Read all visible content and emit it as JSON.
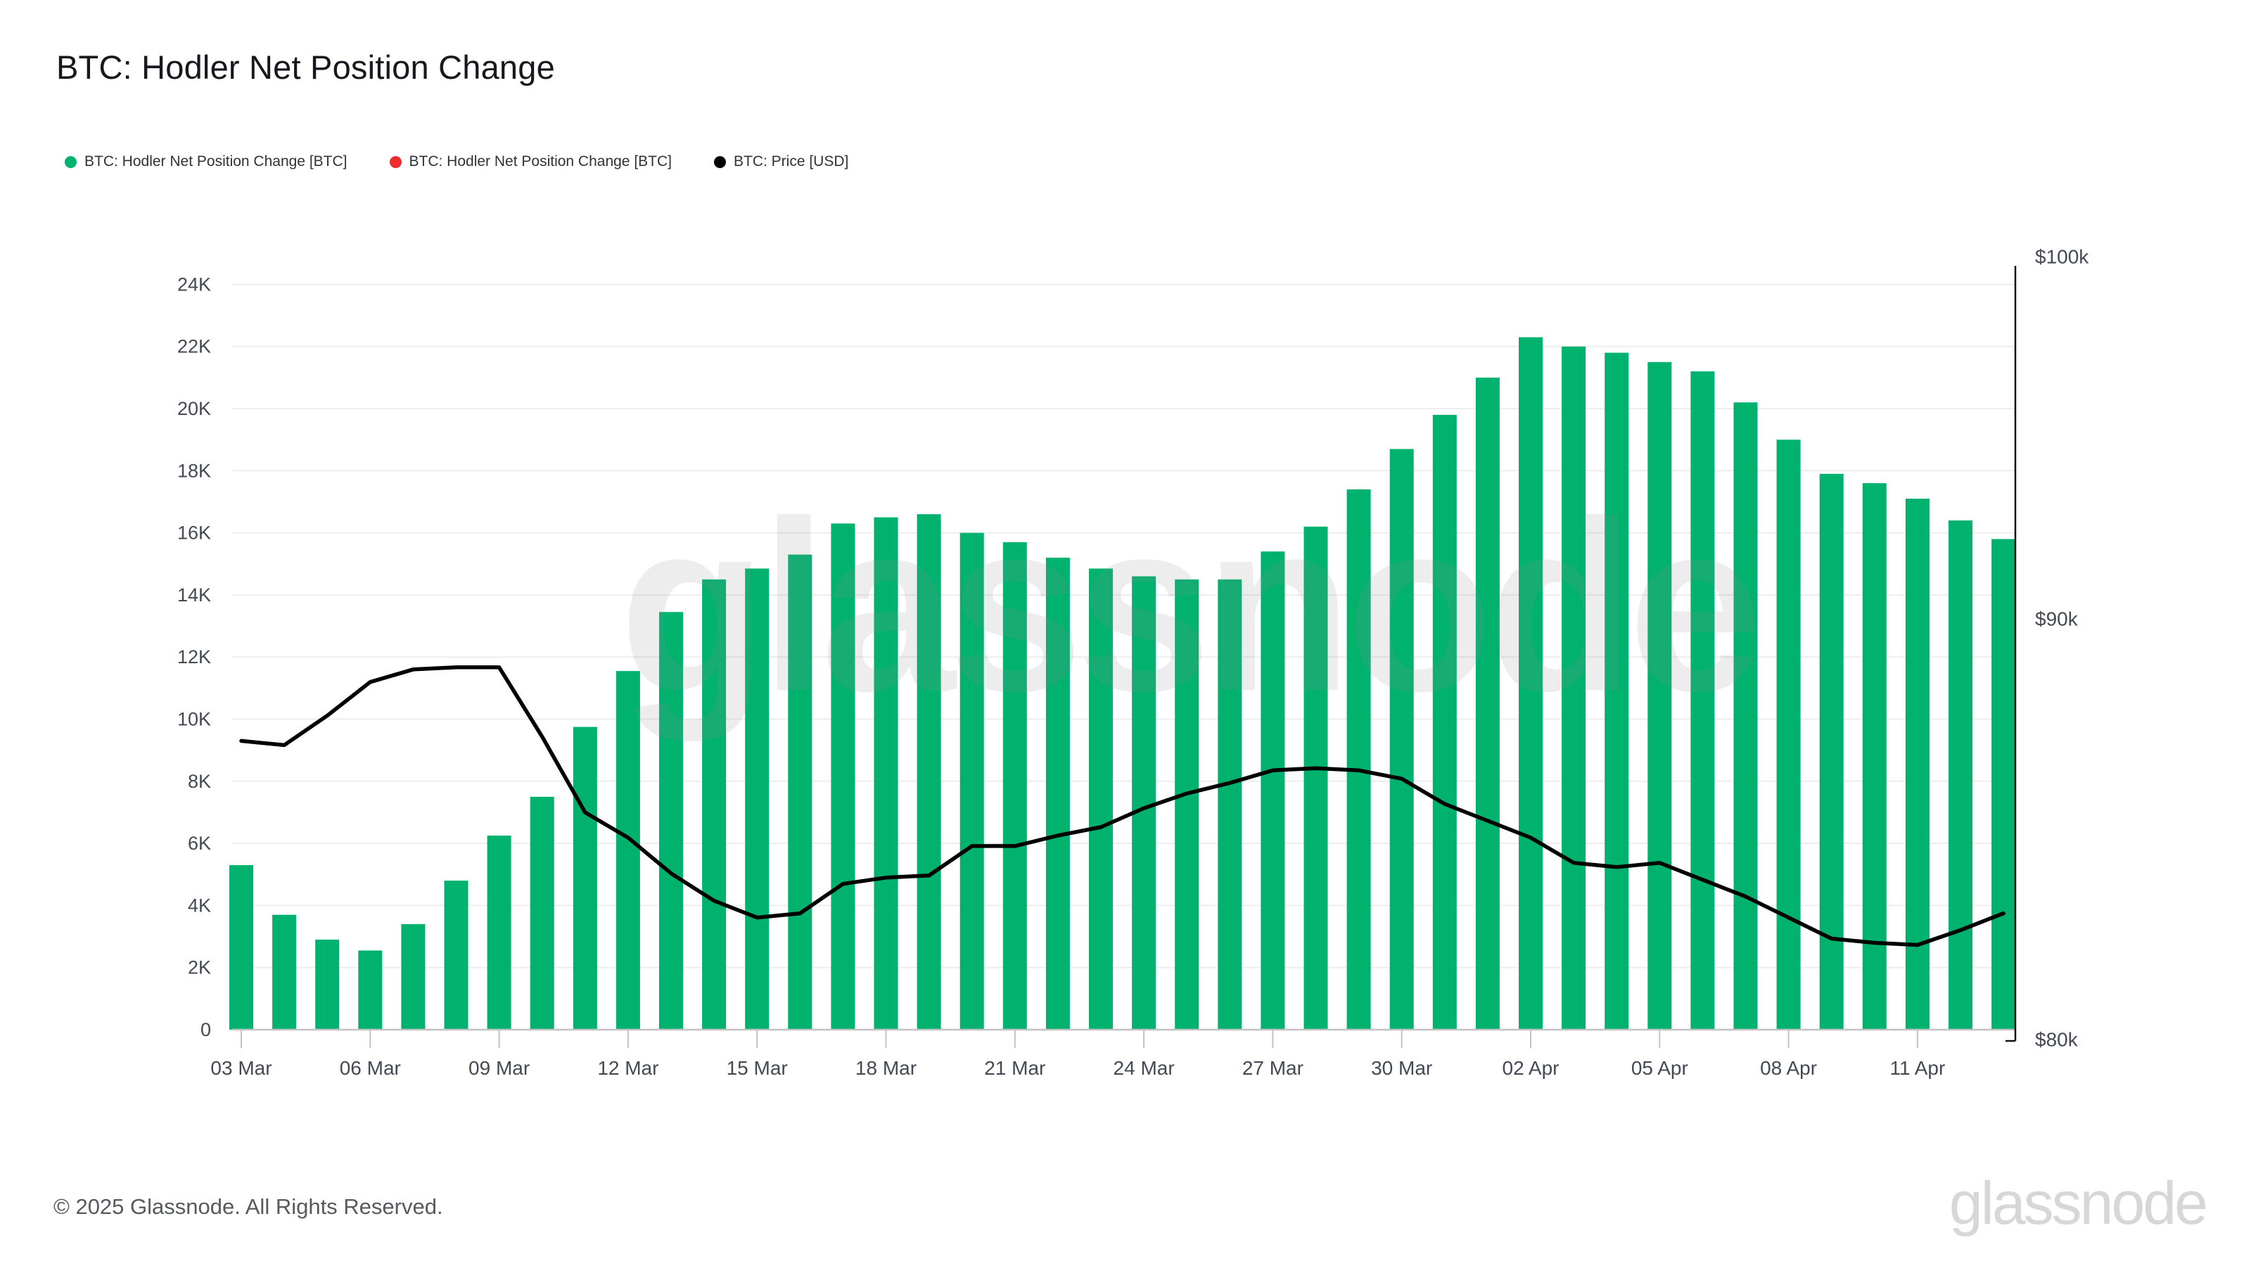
{
  "header": {
    "title": "BTC: Hodler Net Position Change"
  },
  "legend": [
    {
      "label": "BTC: Hodler Net Position Change [BTC]",
      "color": "#00b26e",
      "marker": "circle-icon"
    },
    {
      "label": "BTC: Hodler Net Position Change [BTC]",
      "color": "#ee2c2c",
      "marker": "circle-icon"
    },
    {
      "label": "BTC: Price [USD]",
      "color": "#000000",
      "marker": "circle-icon"
    }
  ],
  "chart_data": {
    "type": "bar",
    "title": "BTC: Hodler Net Position Change",
    "categories": [
      "03 Mar",
      "04 Mar",
      "05 Mar",
      "06 Mar",
      "07 Mar",
      "08 Mar",
      "09 Mar",
      "10 Mar",
      "11 Mar",
      "12 Mar",
      "13 Mar",
      "14 Mar",
      "15 Mar",
      "16 Mar",
      "17 Mar",
      "18 Mar",
      "19 Mar",
      "20 Mar",
      "21 Mar",
      "22 Mar",
      "23 Mar",
      "24 Mar",
      "25 Mar",
      "26 Mar",
      "27 Mar",
      "28 Mar",
      "29 Mar",
      "30 Mar",
      "31 Mar",
      "01 Apr",
      "02 Apr",
      "03 Apr",
      "04 Apr",
      "05 Apr",
      "06 Apr",
      "07 Apr",
      "08 Apr",
      "09 Apr",
      "10 Apr",
      "11 Apr",
      "12 Apr",
      "13 Apr"
    ],
    "series": [
      {
        "name": "BTC: Hodler Net Position Change [BTC]",
        "type": "bar",
        "axis": "left",
        "unit": "K BTC",
        "color": "#00b26e",
        "values": [
          5.3,
          3.7,
          2.9,
          2.55,
          3.4,
          4.8,
          6.25,
          7.5,
          9.75,
          11.55,
          13.45,
          14.5,
          14.85,
          15.3,
          16.3,
          16.5,
          16.6,
          16.0,
          15.7,
          15.2,
          14.85,
          14.6,
          14.5,
          14.5,
          15.4,
          16.2,
          17.4,
          18.7,
          19.8,
          21.0,
          22.3,
          22.0,
          21.8,
          21.5,
          21.2,
          20.2,
          19.0,
          17.9,
          17.6,
          17.1,
          16.4,
          15.8
        ]
      },
      {
        "name": "BTC: Price [USD]",
        "type": "line",
        "axis": "right",
        "unit": "USD k",
        "color": "#000000",
        "values": [
          87.1,
          87.0,
          87.7,
          88.5,
          88.8,
          88.85,
          88.85,
          87.2,
          85.4,
          84.8,
          83.95,
          83.3,
          82.9,
          83.0,
          83.7,
          83.85,
          83.9,
          84.6,
          84.6,
          84.85,
          85.05,
          85.5,
          85.85,
          86.1,
          86.4,
          86.45,
          86.4,
          86.2,
          85.6,
          85.2,
          84.8,
          84.2,
          84.1,
          84.2,
          83.8,
          83.4,
          82.9,
          82.4,
          82.3,
          82.25,
          82.6,
          83.0
        ]
      }
    ],
    "xlabel": "",
    "ylabel_left": "",
    "ylabel_right": "",
    "x_tick_labels": [
      "03 Mar",
      "06 Mar",
      "09 Mar",
      "12 Mar",
      "15 Mar",
      "18 Mar",
      "21 Mar",
      "24 Mar",
      "27 Mar",
      "30 Mar",
      "02 Apr",
      "05 Apr",
      "08 Apr",
      "11 Apr"
    ],
    "x_tick_every": 3,
    "left_axis": {
      "ticks": [
        0,
        2,
        4,
        6,
        8,
        10,
        12,
        14,
        16,
        18,
        20,
        22,
        24
      ],
      "tick_labels": [
        "0",
        "2K",
        "4K",
        "6K",
        "8K",
        "10K",
        "12K",
        "14K",
        "16K",
        "18K",
        "20K",
        "22K",
        "24K"
      ],
      "range": [
        0,
        24.9
      ]
    },
    "right_axis": {
      "ticks": [
        80,
        90,
        100
      ],
      "tick_labels": [
        "$80k",
        "$90k",
        "$100k"
      ],
      "range": [
        79.8,
        101.7
      ]
    },
    "grid": "horizontal",
    "legend_position": "top-left",
    "colors": {
      "bar": "#00b26e",
      "line": "#000000",
      "grid": "#ededed",
      "axis_line": "#c3c3c3",
      "right_axis_line": "#111111",
      "tick_text": "#434a54"
    }
  },
  "watermark": {
    "text": "glassnode"
  },
  "footer": {
    "copyright": "© 2025 Glassnode. All Rights Reserved.",
    "brand": "glassnode"
  }
}
